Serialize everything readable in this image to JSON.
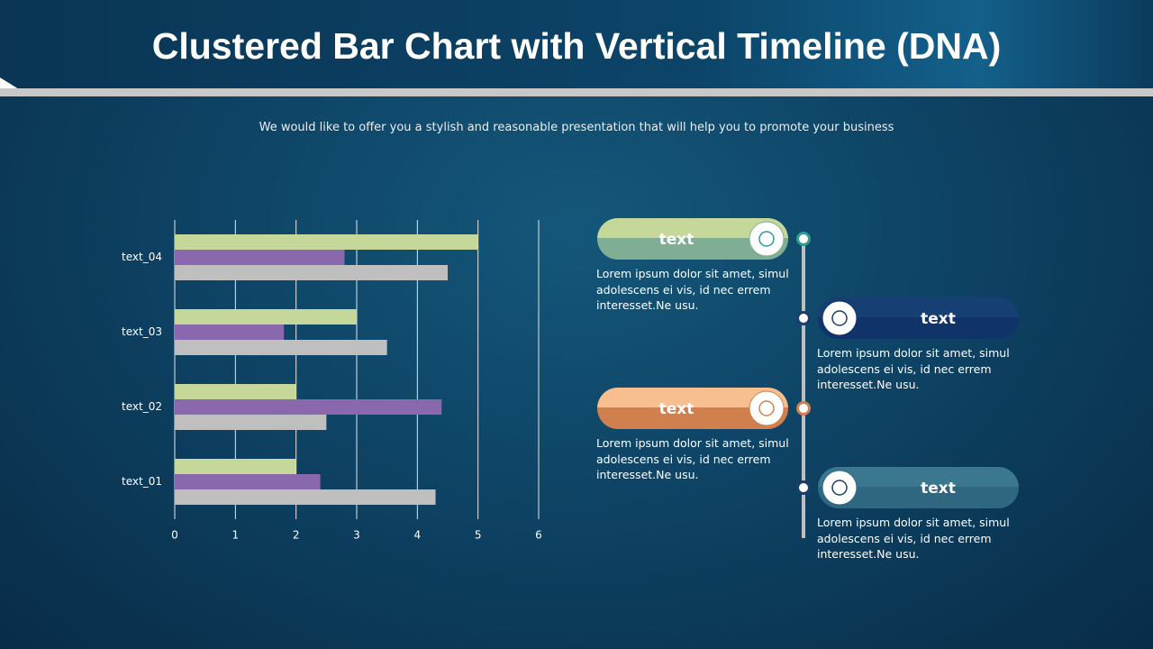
{
  "title": "Clustered Bar Chart with Vertical Timeline (DNA)",
  "subtitle": "We would like to offer you a stylish and reasonable presentation that will help you to promote your business",
  "chart_data": {
    "type": "bar",
    "orientation": "horizontal",
    "categories": [
      "text_01",
      "text_02",
      "text_03",
      "text_04"
    ],
    "series": [
      {
        "color": "#c5d89a",
        "values": [
          2,
          2,
          3,
          5
        ]
      },
      {
        "color": "#8a68ad",
        "values": [
          2.4,
          4.4,
          1.8,
          2.8
        ]
      },
      {
        "color": "#bfbfbf",
        "values": [
          4.3,
          2.5,
          3.5,
          4.5
        ]
      }
    ],
    "xlim": [
      0,
      6
    ],
    "xticks": [
      0,
      1,
      2,
      3,
      4,
      5,
      6
    ],
    "grid": true
  },
  "timeline": [
    {
      "label": "text",
      "body": "Lorem ipsum dolor sit amet, simul adolescens ei vis, id nec errem interesset.Ne usu."
    },
    {
      "label": "text",
      "body": "Lorem ipsum dolor sit amet, simul adolescens ei vis, id nec errem interesset.Ne usu."
    },
    {
      "label": "text",
      "body": "Lorem ipsum dolor sit amet, simul adolescens ei vis, id nec errem interesset.Ne usu."
    },
    {
      "label": "text",
      "body": "Lorem ipsum dolor sit amet, simul adolescens ei vis, id nec errem interesset.Ne usu."
    }
  ]
}
